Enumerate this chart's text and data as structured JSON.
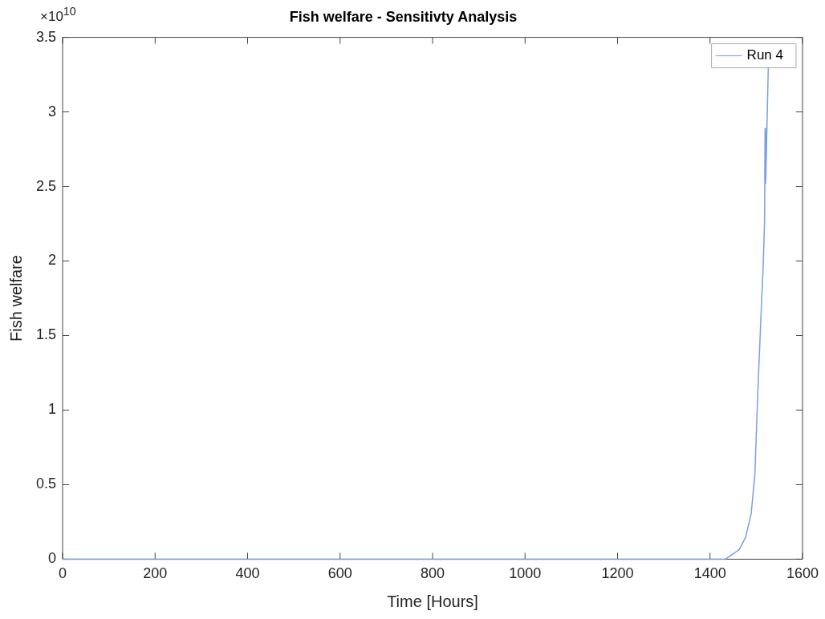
{
  "chart_data": {
    "type": "line",
    "title": "Fish welfare - Sensitivty Analysis",
    "xlabel": "Time [Hours]",
    "ylabel": "Fish welfare",
    "annotations": [
      "×10$^{10}$"
    ],
    "series": [
      {
        "name": "Run 4",
        "color": "#7b9fdc",
        "x": [
          0,
          1400,
          1433,
          1463,
          1477,
          1489,
          1497,
          1503,
          1510,
          1515,
          1518,
          1519,
          1520,
          1521,
          1526
        ],
        "values": [
          0,
          0,
          0,
          0.063,
          0.147,
          0.305,
          0.57,
          1.09,
          1.62,
          1.97,
          2.27,
          2.89,
          2.52,
          2.6,
          3.3
        ]
      }
    ],
    "xlim": [
      0,
      1600
    ],
    "xticks": [
      0,
      200,
      400,
      600,
      800,
      1000,
      1200,
      1400,
      1600
    ],
    "ylim": [
      0,
      3.5
    ],
    "yticks": [
      0,
      0.5,
      1,
      1.5,
      2,
      2.5,
      3,
      3.5
    ],
    "grid": false,
    "legend": "top right",
    "marker": "none",
    "line_style": "solid"
  }
}
